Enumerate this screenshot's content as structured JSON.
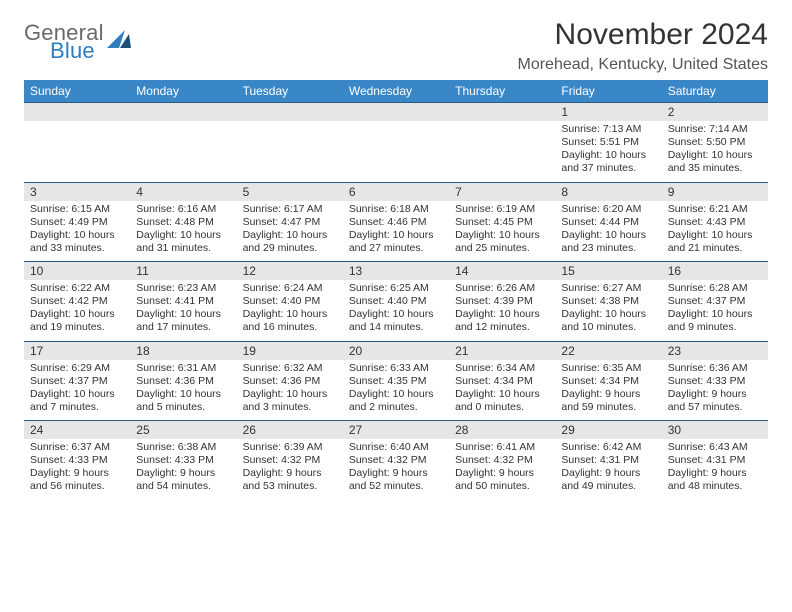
{
  "brand": {
    "part1": "General",
    "part2": "Blue"
  },
  "title": "November 2024",
  "location": "Morehead, Kentucky, United States",
  "colors": {
    "header_bg": "#3a87c7",
    "header_text": "#ffffff",
    "daynum_bg": "#e6e6e6",
    "rule": "#2b5a82",
    "logo_gray": "#6a6a6a",
    "logo_blue": "#2d7dbf"
  },
  "day_headers": [
    "Sunday",
    "Monday",
    "Tuesday",
    "Wednesday",
    "Thursday",
    "Friday",
    "Saturday"
  ],
  "weeks": [
    {
      "nums": [
        "",
        "",
        "",
        "",
        "",
        "1",
        "2"
      ],
      "cells": [
        {},
        {},
        {},
        {},
        {},
        {
          "sunrise": "Sunrise: 7:13 AM",
          "sunset": "Sunset: 5:51 PM",
          "daylight": "Daylight: 10 hours and 37 minutes."
        },
        {
          "sunrise": "Sunrise: 7:14 AM",
          "sunset": "Sunset: 5:50 PM",
          "daylight": "Daylight: 10 hours and 35 minutes."
        }
      ]
    },
    {
      "nums": [
        "3",
        "4",
        "5",
        "6",
        "7",
        "8",
        "9"
      ],
      "cells": [
        {
          "sunrise": "Sunrise: 6:15 AM",
          "sunset": "Sunset: 4:49 PM",
          "daylight": "Daylight: 10 hours and 33 minutes."
        },
        {
          "sunrise": "Sunrise: 6:16 AM",
          "sunset": "Sunset: 4:48 PM",
          "daylight": "Daylight: 10 hours and 31 minutes."
        },
        {
          "sunrise": "Sunrise: 6:17 AM",
          "sunset": "Sunset: 4:47 PM",
          "daylight": "Daylight: 10 hours and 29 minutes."
        },
        {
          "sunrise": "Sunrise: 6:18 AM",
          "sunset": "Sunset: 4:46 PM",
          "daylight": "Daylight: 10 hours and 27 minutes."
        },
        {
          "sunrise": "Sunrise: 6:19 AM",
          "sunset": "Sunset: 4:45 PM",
          "daylight": "Daylight: 10 hours and 25 minutes."
        },
        {
          "sunrise": "Sunrise: 6:20 AM",
          "sunset": "Sunset: 4:44 PM",
          "daylight": "Daylight: 10 hours and 23 minutes."
        },
        {
          "sunrise": "Sunrise: 6:21 AM",
          "sunset": "Sunset: 4:43 PM",
          "daylight": "Daylight: 10 hours and 21 minutes."
        }
      ]
    },
    {
      "nums": [
        "10",
        "11",
        "12",
        "13",
        "14",
        "15",
        "16"
      ],
      "cells": [
        {
          "sunrise": "Sunrise: 6:22 AM",
          "sunset": "Sunset: 4:42 PM",
          "daylight": "Daylight: 10 hours and 19 minutes."
        },
        {
          "sunrise": "Sunrise: 6:23 AM",
          "sunset": "Sunset: 4:41 PM",
          "daylight": "Daylight: 10 hours and 17 minutes."
        },
        {
          "sunrise": "Sunrise: 6:24 AM",
          "sunset": "Sunset: 4:40 PM",
          "daylight": "Daylight: 10 hours and 16 minutes."
        },
        {
          "sunrise": "Sunrise: 6:25 AM",
          "sunset": "Sunset: 4:40 PM",
          "daylight": "Daylight: 10 hours and 14 minutes."
        },
        {
          "sunrise": "Sunrise: 6:26 AM",
          "sunset": "Sunset: 4:39 PM",
          "daylight": "Daylight: 10 hours and 12 minutes."
        },
        {
          "sunrise": "Sunrise: 6:27 AM",
          "sunset": "Sunset: 4:38 PM",
          "daylight": "Daylight: 10 hours and 10 minutes."
        },
        {
          "sunrise": "Sunrise: 6:28 AM",
          "sunset": "Sunset: 4:37 PM",
          "daylight": "Daylight: 10 hours and 9 minutes."
        }
      ]
    },
    {
      "nums": [
        "17",
        "18",
        "19",
        "20",
        "21",
        "22",
        "23"
      ],
      "cells": [
        {
          "sunrise": "Sunrise: 6:29 AM",
          "sunset": "Sunset: 4:37 PM",
          "daylight": "Daylight: 10 hours and 7 minutes."
        },
        {
          "sunrise": "Sunrise: 6:31 AM",
          "sunset": "Sunset: 4:36 PM",
          "daylight": "Daylight: 10 hours and 5 minutes."
        },
        {
          "sunrise": "Sunrise: 6:32 AM",
          "sunset": "Sunset: 4:36 PM",
          "daylight": "Daylight: 10 hours and 3 minutes."
        },
        {
          "sunrise": "Sunrise: 6:33 AM",
          "sunset": "Sunset: 4:35 PM",
          "daylight": "Daylight: 10 hours and 2 minutes."
        },
        {
          "sunrise": "Sunrise: 6:34 AM",
          "sunset": "Sunset: 4:34 PM",
          "daylight": "Daylight: 10 hours and 0 minutes."
        },
        {
          "sunrise": "Sunrise: 6:35 AM",
          "sunset": "Sunset: 4:34 PM",
          "daylight": "Daylight: 9 hours and 59 minutes."
        },
        {
          "sunrise": "Sunrise: 6:36 AM",
          "sunset": "Sunset: 4:33 PM",
          "daylight": "Daylight: 9 hours and 57 minutes."
        }
      ]
    },
    {
      "nums": [
        "24",
        "25",
        "26",
        "27",
        "28",
        "29",
        "30"
      ],
      "cells": [
        {
          "sunrise": "Sunrise: 6:37 AM",
          "sunset": "Sunset: 4:33 PM",
          "daylight": "Daylight: 9 hours and 56 minutes."
        },
        {
          "sunrise": "Sunrise: 6:38 AM",
          "sunset": "Sunset: 4:33 PM",
          "daylight": "Daylight: 9 hours and 54 minutes."
        },
        {
          "sunrise": "Sunrise: 6:39 AM",
          "sunset": "Sunset: 4:32 PM",
          "daylight": "Daylight: 9 hours and 53 minutes."
        },
        {
          "sunrise": "Sunrise: 6:40 AM",
          "sunset": "Sunset: 4:32 PM",
          "daylight": "Daylight: 9 hours and 52 minutes."
        },
        {
          "sunrise": "Sunrise: 6:41 AM",
          "sunset": "Sunset: 4:32 PM",
          "daylight": "Daylight: 9 hours and 50 minutes."
        },
        {
          "sunrise": "Sunrise: 6:42 AM",
          "sunset": "Sunset: 4:31 PM",
          "daylight": "Daylight: 9 hours and 49 minutes."
        },
        {
          "sunrise": "Sunrise: 6:43 AM",
          "sunset": "Sunset: 4:31 PM",
          "daylight": "Daylight: 9 hours and 48 minutes."
        }
      ]
    }
  ]
}
